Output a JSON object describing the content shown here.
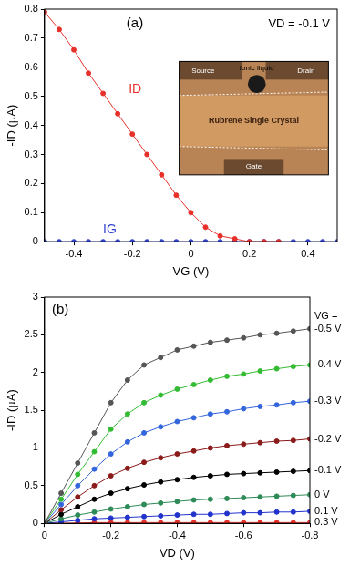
{
  "chart_data": [
    {
      "type": "line",
      "x_label": "VG (V)",
      "y_label": "-ID (µA)",
      "annotations": [
        {
          "text": "(a)"
        },
        {
          "text": "VD = -0.1 V"
        }
      ],
      "inset": {
        "ionic_liquid": "Ionic liquid",
        "source": "Source",
        "drain": "Drain",
        "crystal": "Rubrene Single Crystal",
        "gate": "Gate"
      },
      "x": [
        -0.5,
        -0.45,
        -0.4,
        -0.35,
        -0.3,
        -0.25,
        -0.2,
        -0.15,
        -0.1,
        -0.05,
        0,
        0.05,
        0.1,
        0.15,
        0.2,
        0.25,
        0.3,
        0.35,
        0.4,
        0.45,
        0.5
      ],
      "series": [
        {
          "name": "ID",
          "color": "#e8302a",
          "marker": "circle",
          "line_style": "solid",
          "values": [
            0.79,
            0.73,
            0.66,
            0.58,
            0.51,
            0.44,
            0.37,
            0.3,
            0.23,
            0.16,
            0.1,
            0.05,
            0.02,
            0.01,
            0,
            0,
            0,
            null,
            null,
            null,
            null
          ]
        },
        {
          "name": "IG",
          "color": "#3344cc",
          "marker": "circle",
          "line_style": "solid",
          "values": [
            0,
            0,
            0,
            0,
            0,
            0,
            0,
            0,
            0,
            0,
            0,
            0,
            0,
            0,
            0,
            0,
            0,
            0,
            0,
            0,
            0
          ]
        }
      ],
      "xlim": [
        -0.5,
        0.5
      ],
      "xticks": [
        -0.4,
        -0.2,
        0,
        0.2,
        0.4
      ],
      "ylim": [
        0,
        0.8
      ],
      "yticks": [
        0,
        0.1,
        0.2,
        0.3,
        0.4,
        0.5,
        0.6,
        0.7,
        0.8
      ],
      "grid": false
    },
    {
      "type": "line",
      "x_label": "VD (V)",
      "y_label": "-ID (µA)",
      "annotations": [
        {
          "text": "(b)"
        },
        {
          "text": "VG ="
        }
      ],
      "x": [
        0,
        -0.05,
        -0.1,
        -0.15,
        -0.2,
        -0.25,
        -0.3,
        -0.35,
        -0.4,
        -0.45,
        -0.5,
        -0.55,
        -0.6,
        -0.65,
        -0.7,
        -0.75,
        -0.8
      ],
      "series": [
        {
          "name": "-0.5 V",
          "color": "#555555",
          "marker": "circle",
          "line_style": "solid",
          "values": [
            0,
            0.4,
            0.8,
            1.2,
            1.6,
            1.9,
            2.1,
            2.2,
            2.3,
            2.35,
            2.4,
            2.43,
            2.46,
            2.5,
            2.52,
            2.55,
            2.58
          ]
        },
        {
          "name": "-0.4 V",
          "color": "#33bb33",
          "marker": "circle",
          "line_style": "solid",
          "values": [
            0,
            0.32,
            0.65,
            0.95,
            1.25,
            1.45,
            1.6,
            1.7,
            1.78,
            1.84,
            1.9,
            1.95,
            1.98,
            2.02,
            2.05,
            2.08,
            2.1
          ]
        },
        {
          "name": "-0.3 V",
          "color": "#3366dd",
          "marker": "circle",
          "line_style": "solid",
          "values": [
            0,
            0.25,
            0.5,
            0.72,
            0.92,
            1.08,
            1.2,
            1.28,
            1.35,
            1.4,
            1.45,
            1.48,
            1.52,
            1.55,
            1.57,
            1.6,
            1.62
          ]
        },
        {
          "name": "-0.2 V",
          "color": "#8b1a1a",
          "marker": "circle",
          "line_style": "solid",
          "values": [
            0,
            0.18,
            0.35,
            0.5,
            0.63,
            0.73,
            0.81,
            0.87,
            0.92,
            0.96,
            1,
            1.03,
            1.05,
            1.07,
            1.09,
            1.1,
            1.12
          ]
        },
        {
          "name": "-0.1 V",
          "color": "#000000",
          "marker": "circle",
          "line_style": "solid",
          "values": [
            0,
            0.12,
            0.22,
            0.32,
            0.4,
            0.46,
            0.51,
            0.55,
            0.58,
            0.61,
            0.63,
            0.65,
            0.66,
            0.67,
            0.68,
            0.69,
            0.7
          ]
        },
        {
          "name": "0 V",
          "color": "#2e8b57",
          "marker": "circle",
          "line_style": "solid",
          "values": [
            0,
            0.06,
            0.11,
            0.15,
            0.19,
            0.22,
            0.25,
            0.27,
            0.29,
            0.31,
            0.32,
            0.33,
            0.34,
            0.35,
            0.36,
            0.37,
            0.38
          ]
        },
        {
          "name": "0.1 V",
          "color": "#2233cc",
          "marker": "circle",
          "line_style": "solid",
          "values": [
            0,
            0.02,
            0.04,
            0.06,
            0.07,
            0.08,
            0.09,
            0.1,
            0.11,
            0.12,
            0.12,
            0.13,
            0.14,
            0.14,
            0.15,
            0.15,
            0.16
          ]
        },
        {
          "name": "0.3 V",
          "color": "#e8302a",
          "marker": "circle",
          "line_style": "solid",
          "values": [
            0,
            0,
            0.005,
            0.01,
            0.01,
            0.01,
            0.01,
            0.01,
            0.01,
            0.01,
            0.01,
            0.01,
            0.01,
            0.01,
            0.01,
            0.01,
            0.01
          ]
        }
      ],
      "xlim": [
        0,
        -0.8
      ],
      "xticks": [
        0,
        -0.2,
        -0.4,
        -0.6,
        -0.8
      ],
      "ylim": [
        0,
        3
      ],
      "yticks": [
        0,
        0.5,
        1,
        1.5,
        2,
        2.5,
        3
      ],
      "grid": false
    }
  ]
}
